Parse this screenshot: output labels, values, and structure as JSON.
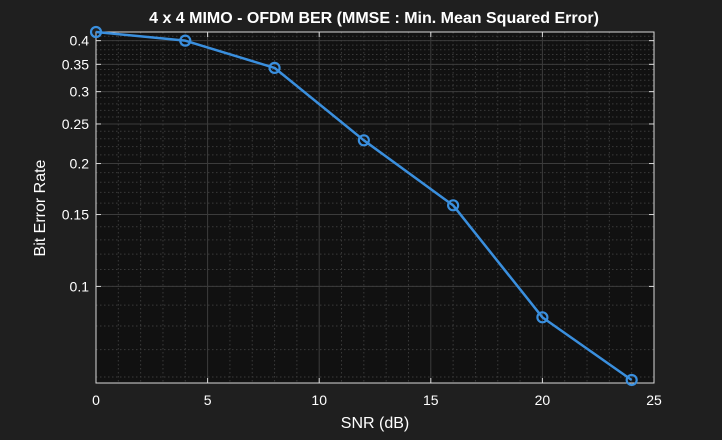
{
  "chart_data": {
    "type": "line",
    "title": "4 x 4 MIMO - OFDM BER (MMSE : Min. Mean Squared Error)",
    "xlabel": "SNR (dB)",
    "ylabel": "Bit Error Rate",
    "xlim": [
      0,
      25
    ],
    "ylim": [
      0.058,
      0.42
    ],
    "yscale": "log",
    "grid": true,
    "minor_grid": true,
    "x_ticks": [
      "0",
      "5",
      "10",
      "15",
      "20",
      "25"
    ],
    "y_ticks": [
      "0.1",
      "0.15",
      "0.2",
      "0.25",
      "0.3",
      "0.35",
      "0.4"
    ],
    "series": [
      {
        "marker": "circle",
        "color": "#3a8fde",
        "x": [
          0,
          4,
          8,
          12,
          16,
          20,
          24
        ],
        "y": [
          0.42,
          0.4,
          0.343,
          0.228,
          0.158,
          0.084,
          0.059
        ]
      }
    ]
  },
  "colors": {
    "figure_bg": "#1f1f1f",
    "axes_bg": "#111111",
    "axis": "#d9d9d9",
    "text": "#ffffff",
    "major_grid": "#3c3c3c",
    "minor_grid": "#3a3a3a"
  }
}
